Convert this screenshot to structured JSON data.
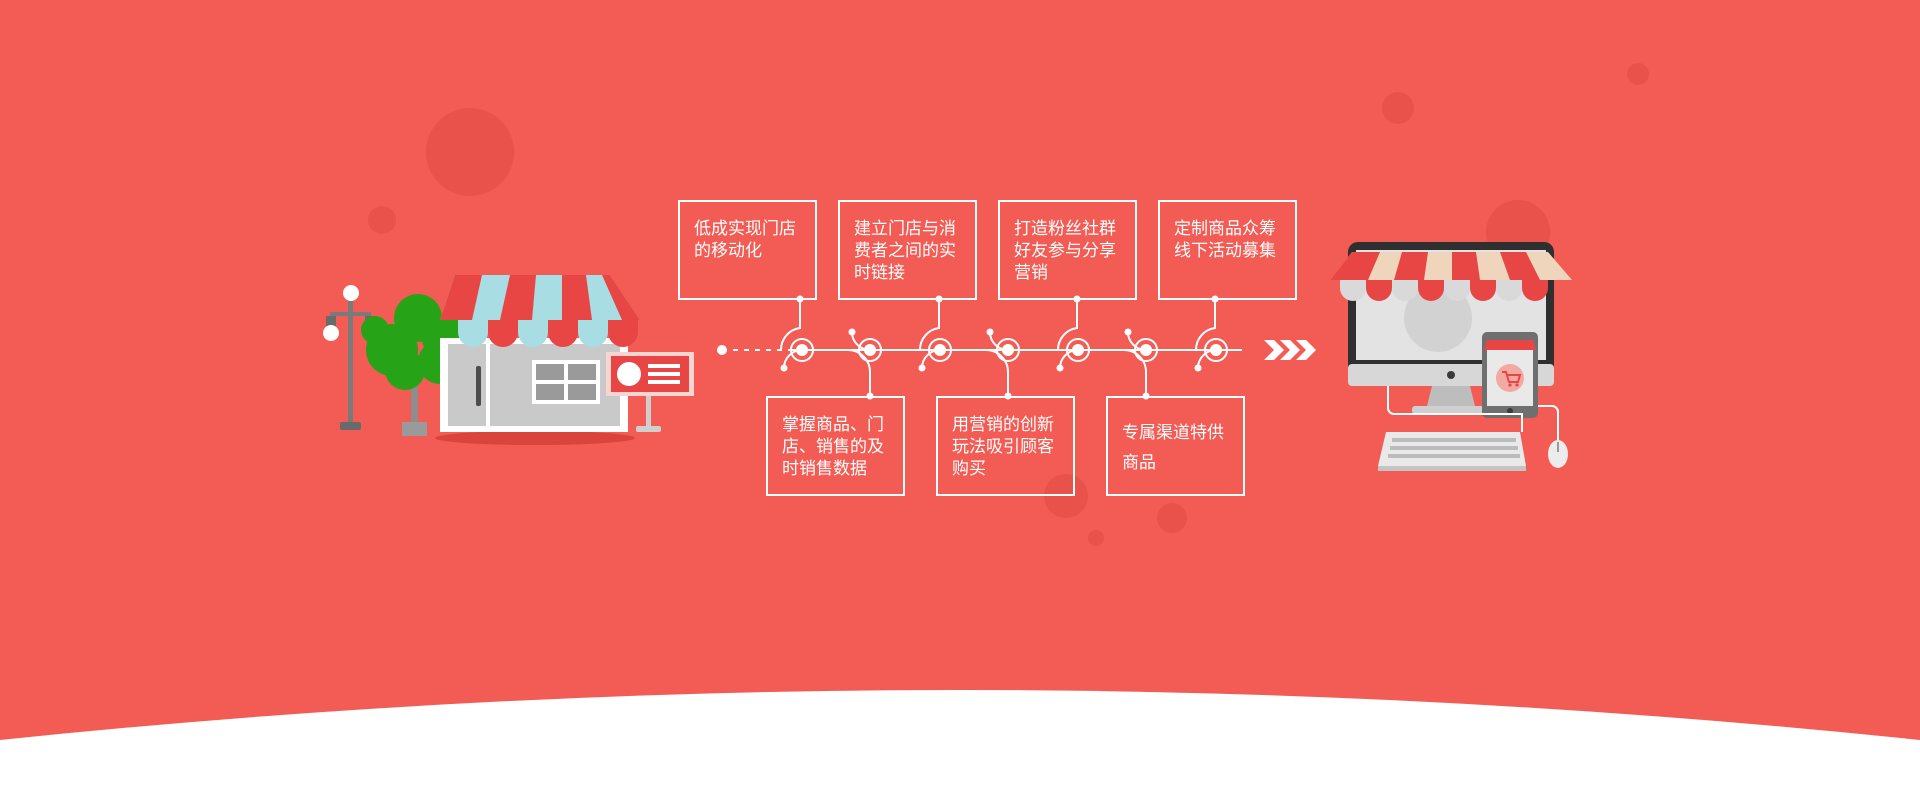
{
  "colors": {
    "background": "#f25c54",
    "bubble": "#e8524b",
    "bottom_wave": "#ffffff",
    "line": "#ffffff"
  },
  "timeline": {
    "top_steps": [
      {
        "label": "低成实现门店的移动化"
      },
      {
        "label": "建立门店与消费者之间的实时链接"
      },
      {
        "label": "打造粉丝社群好友参与分享营销"
      },
      {
        "label": "定制商品众筹线下活动募集"
      }
    ],
    "bottom_steps": [
      {
        "label": "掌握商品、门店、销售的及时销售数据"
      },
      {
        "label": "用营销的创新玩法吸引顾客购买"
      },
      {
        "label": "专属渠道特供商品"
      }
    ]
  },
  "illustrations": {
    "left": {
      "icon": "storefront-icon",
      "parts": [
        "street-lamp-icon",
        "tree-icon",
        "shop-sign-icon"
      ]
    },
    "right": {
      "icon": "online-store-computer-icon",
      "parts": [
        "monitor-awning-icon",
        "phone-cart-icon",
        "keyboard-icon",
        "mouse-icon"
      ]
    },
    "arrows": {
      "icon": "triple-chevron-right-icon"
    }
  }
}
